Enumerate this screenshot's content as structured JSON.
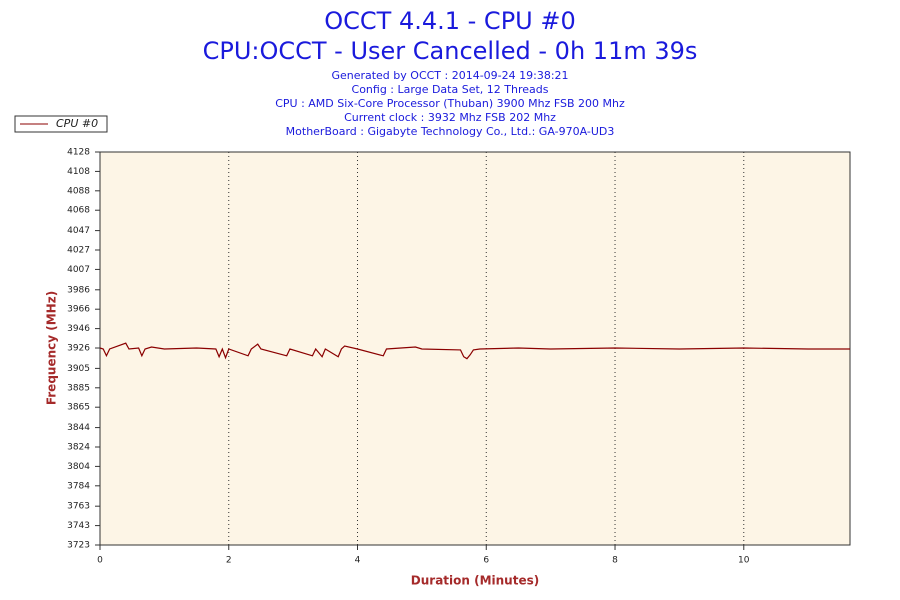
{
  "chart_data": {
    "type": "line",
    "title": "OCCT 4.4.1 - CPU #0",
    "subtitle": "CPU:OCCT - User Cancelled - 0h 11m 39s",
    "info": [
      "Generated by OCCT : 2014-09-24 19:38:21",
      "Config : Large Data Set, 12 Threads",
      "CPU : AMD Six-Core Processor (Thuban) 3900 Mhz FSB 200 Mhz",
      "Current clock : 3932 Mhz FSB 202 Mhz",
      "MotherBoard : Gigabyte Technology Co., Ltd.: GA-970A-UD3"
    ],
    "x_label": "Duration (Minutes)",
    "y_label": "Frequency (MHz)",
    "x": [
      0,
      0.05,
      0.1,
      0.15,
      0.4,
      0.45,
      0.6,
      0.65,
      0.7,
      0.8,
      1.0,
      1.5,
      1.8,
      1.85,
      1.9,
      1.95,
      2.0,
      2.3,
      2.35,
      2.45,
      2.5,
      2.9,
      2.95,
      3.3,
      3.35,
      3.45,
      3.5,
      3.7,
      3.75,
      3.8,
      4.0,
      4.4,
      4.45,
      4.9,
      5.0,
      5.6,
      5.65,
      5.7,
      5.75,
      5.8,
      5.9,
      6.5,
      7.0,
      8.0,
      9.0,
      10.0,
      11.0,
      11.65
    ],
    "series": [
      {
        "name": "CPU #0",
        "color": "#8b0000",
        "values": [
          3926,
          3925,
          3918,
          3925,
          3931,
          3925,
          3926,
          3918,
          3925,
          3927,
          3925,
          3926,
          3925,
          3917,
          3925,
          3916,
          3925,
          3918,
          3925,
          3930,
          3925,
          3918,
          3925,
          3918,
          3925,
          3917,
          3925,
          3917,
          3925,
          3928,
          3925,
          3918,
          3925,
          3927,
          3925,
          3924,
          3917,
          3915,
          3919,
          3924,
          3925,
          3926,
          3925,
          3926,
          3925,
          3926,
          3925,
          3925
        ]
      }
    ],
    "xlim": [
      0,
      11.65
    ],
    "xticks": [
      0,
      2,
      4,
      6,
      8,
      10
    ],
    "ylim": [
      3723,
      4128
    ],
    "yticks": [
      3723,
      3743,
      3763,
      3784,
      3804,
      3824,
      3844,
      3865,
      3885,
      3905,
      3926,
      3946,
      3966,
      3986,
      4007,
      4027,
      4047,
      4068,
      4088,
      4108,
      4128
    ],
    "grid": "x",
    "background": "#fdf5e6"
  }
}
